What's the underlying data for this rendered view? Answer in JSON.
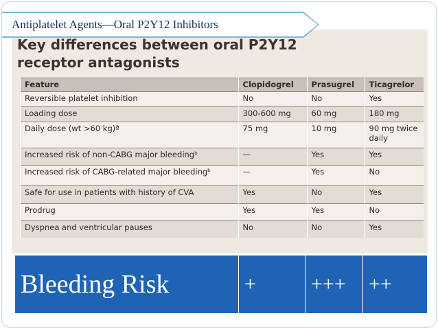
{
  "slide": {
    "title": "Antiplatelet Agents—Oral P2Y12 Inhibitors"
  },
  "scan": {
    "heading_line1": "Key differences between oral P2Y12",
    "heading_line2": "receptor antagonists",
    "table": {
      "headers": [
        "Feature",
        "Clopidogrel",
        "Prasugrel",
        "Ticagrelor"
      ],
      "rows": [
        [
          "Reversible platelet inhibition",
          "No",
          "No",
          "Yes"
        ],
        [
          "Loading dose",
          "300-600 mg",
          "60 mg",
          "180 mg"
        ],
        [
          "Daily dose (wt >60 kg)ª",
          "75 mg",
          "10 mg",
          "90 mg twice daily"
        ],
        [
          "Increased risk of non-CABG major bleedingᵇ",
          "—",
          "Yes",
          "Yes"
        ],
        [
          "Increased risk of CABG-related major bleedingᵇ",
          "—",
          "Yes",
          "No"
        ],
        [
          "Safe for use in patients with history of CVA",
          "Yes",
          "No",
          "Yes"
        ],
        [
          "Prodrug",
          "Yes",
          "Yes",
          "No"
        ],
        [
          "Dyspnea and ventricular pauses",
          "No",
          "No",
          "Yes"
        ]
      ]
    }
  },
  "bleeding": {
    "label": "Bleeding Risk",
    "clopidogrel": "+",
    "prasugrel": "+++",
    "ticagrelor": "++"
  },
  "colors": {
    "accent_blue": "#1f63b5",
    "title_border": "#7fb2d6",
    "title_text": "#0b2e5a"
  }
}
